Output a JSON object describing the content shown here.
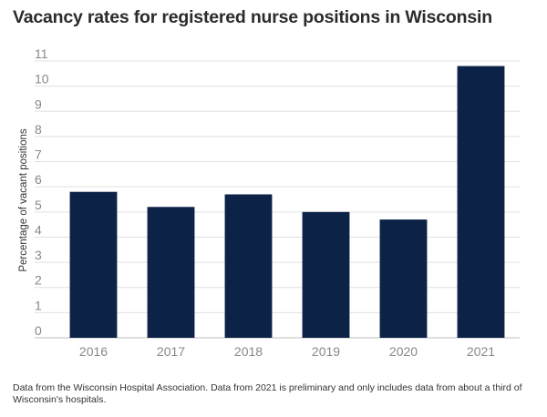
{
  "title": "Vacancy rates for registered nurse positions in Wisconsin",
  "footnote": "Data from the Wisconsin Hospital Association. Data from 2021 is preliminary and only includes data from about a third of Wisconsin's hospitals.",
  "colors": {
    "bar": "#0c2247",
    "grid": "#e0e0e0",
    "axis_text": "#888888"
  },
  "chart_data": {
    "type": "bar",
    "title": "Vacancy rates for registered nurse positions in Wisconsin",
    "xlabel": "",
    "ylabel": "Percentage of vacant positions",
    "categories": [
      "2016",
      "2017",
      "2018",
      "2019",
      "2020",
      "2021"
    ],
    "values": [
      5.8,
      5.2,
      5.7,
      5.0,
      4.7,
      10.8
    ],
    "ylim": [
      0,
      11
    ],
    "yticks": [
      0,
      1,
      2,
      3,
      4,
      5,
      6,
      7,
      8,
      9,
      10,
      11
    ],
    "grid": true,
    "legend": "none"
  }
}
